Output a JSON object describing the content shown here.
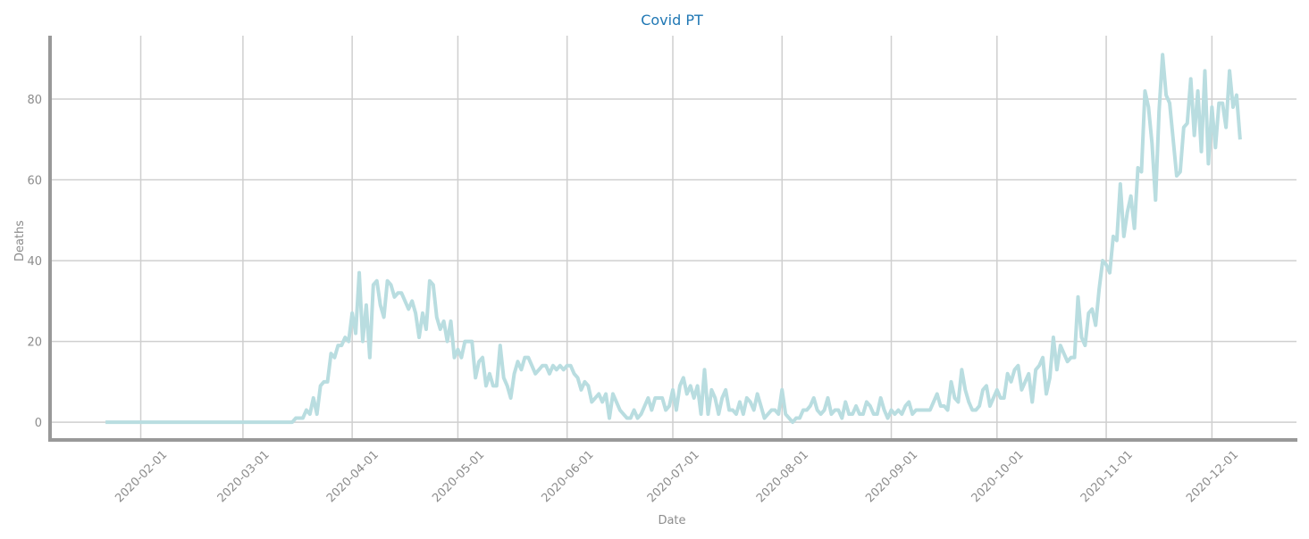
{
  "chart_data": {
    "type": "line",
    "title": "Covid PT",
    "x_label": "Date",
    "y_label": "Deaths",
    "color": "#b9dde0",
    "grid": true,
    "xlim": [
      "2020-01-06",
      "2020-12-25"
    ],
    "ylim": [
      -4.4,
      95.7
    ],
    "xticks": [
      "2020-02-01",
      "2020-03-01",
      "2020-04-01",
      "2020-05-01",
      "2020-06-01",
      "2020-07-01",
      "2020-08-01",
      "2020-09-01",
      "2020-10-01",
      "2020-11-01",
      "2020-12-01"
    ],
    "yticks": [
      0,
      20,
      40,
      60,
      80
    ],
    "x": [
      "2020-01-22",
      "2020-01-23",
      "2020-01-24",
      "2020-01-25",
      "2020-01-26",
      "2020-01-27",
      "2020-01-28",
      "2020-01-29",
      "2020-01-30",
      "2020-01-31",
      "2020-02-01",
      "2020-02-02",
      "2020-02-03",
      "2020-02-04",
      "2020-02-05",
      "2020-02-06",
      "2020-02-07",
      "2020-02-08",
      "2020-02-09",
      "2020-02-10",
      "2020-02-11",
      "2020-02-12",
      "2020-02-13",
      "2020-02-14",
      "2020-02-15",
      "2020-02-16",
      "2020-02-17",
      "2020-02-18",
      "2020-02-19",
      "2020-02-20",
      "2020-02-21",
      "2020-02-22",
      "2020-02-23",
      "2020-02-24",
      "2020-02-25",
      "2020-02-26",
      "2020-02-27",
      "2020-02-28",
      "2020-02-29",
      "2020-03-01",
      "2020-03-02",
      "2020-03-03",
      "2020-03-04",
      "2020-03-05",
      "2020-03-06",
      "2020-03-07",
      "2020-03-08",
      "2020-03-09",
      "2020-03-10",
      "2020-03-11",
      "2020-03-12",
      "2020-03-13",
      "2020-03-14",
      "2020-03-15",
      "2020-03-16",
      "2020-03-17",
      "2020-03-18",
      "2020-03-19",
      "2020-03-20",
      "2020-03-21",
      "2020-03-22",
      "2020-03-23",
      "2020-03-24",
      "2020-03-25",
      "2020-03-26",
      "2020-03-27",
      "2020-03-28",
      "2020-03-29",
      "2020-03-30",
      "2020-03-31",
      "2020-04-01",
      "2020-04-02",
      "2020-04-03",
      "2020-04-04",
      "2020-04-05",
      "2020-04-06",
      "2020-04-07",
      "2020-04-08",
      "2020-04-09",
      "2020-04-10",
      "2020-04-11",
      "2020-04-12",
      "2020-04-13",
      "2020-04-14",
      "2020-04-15",
      "2020-04-16",
      "2020-04-17",
      "2020-04-18",
      "2020-04-19",
      "2020-04-20",
      "2020-04-21",
      "2020-04-22",
      "2020-04-23",
      "2020-04-24",
      "2020-04-25",
      "2020-04-26",
      "2020-04-27",
      "2020-04-28",
      "2020-04-29",
      "2020-04-30",
      "2020-05-01",
      "2020-05-02",
      "2020-05-03",
      "2020-05-04",
      "2020-05-05",
      "2020-05-06",
      "2020-05-07",
      "2020-05-08",
      "2020-05-09",
      "2020-05-10",
      "2020-05-11",
      "2020-05-12",
      "2020-05-13",
      "2020-05-14",
      "2020-05-15",
      "2020-05-16",
      "2020-05-17",
      "2020-05-18",
      "2020-05-19",
      "2020-05-20",
      "2020-05-21",
      "2020-05-22",
      "2020-05-23",
      "2020-05-24",
      "2020-05-25",
      "2020-05-26",
      "2020-05-27",
      "2020-05-28",
      "2020-05-29",
      "2020-05-30",
      "2020-05-31",
      "2020-06-01",
      "2020-06-02",
      "2020-06-03",
      "2020-06-04",
      "2020-06-05",
      "2020-06-06",
      "2020-06-07",
      "2020-06-08",
      "2020-06-09",
      "2020-06-10",
      "2020-06-11",
      "2020-06-12",
      "2020-06-13",
      "2020-06-14",
      "2020-06-15",
      "2020-06-16",
      "2020-06-17",
      "2020-06-18",
      "2020-06-19",
      "2020-06-20",
      "2020-06-21",
      "2020-06-22",
      "2020-06-23",
      "2020-06-24",
      "2020-06-25",
      "2020-06-26",
      "2020-06-27",
      "2020-06-28",
      "2020-06-29",
      "2020-06-30",
      "2020-07-01",
      "2020-07-02",
      "2020-07-03",
      "2020-07-04",
      "2020-07-05",
      "2020-07-06",
      "2020-07-07",
      "2020-07-08",
      "2020-07-09",
      "2020-07-10",
      "2020-07-11",
      "2020-07-12",
      "2020-07-13",
      "2020-07-14",
      "2020-07-15",
      "2020-07-16",
      "2020-07-17",
      "2020-07-18",
      "2020-07-19",
      "2020-07-20",
      "2020-07-21",
      "2020-07-22",
      "2020-07-23",
      "2020-07-24",
      "2020-07-25",
      "2020-07-26",
      "2020-07-27",
      "2020-07-28",
      "2020-07-29",
      "2020-07-30",
      "2020-07-31",
      "2020-08-01",
      "2020-08-02",
      "2020-08-03",
      "2020-08-04",
      "2020-08-05",
      "2020-08-06",
      "2020-08-07",
      "2020-08-08",
      "2020-08-09",
      "2020-08-10",
      "2020-08-11",
      "2020-08-12",
      "2020-08-13",
      "2020-08-14",
      "2020-08-15",
      "2020-08-16",
      "2020-08-17",
      "2020-08-18",
      "2020-08-19",
      "2020-08-20",
      "2020-08-21",
      "2020-08-22",
      "2020-08-23",
      "2020-08-24",
      "2020-08-25",
      "2020-08-26",
      "2020-08-27",
      "2020-08-28",
      "2020-08-29",
      "2020-08-30",
      "2020-08-31",
      "2020-09-01",
      "2020-09-02",
      "2020-09-03",
      "2020-09-04",
      "2020-09-05",
      "2020-09-06",
      "2020-09-07",
      "2020-09-08",
      "2020-09-09",
      "2020-09-10",
      "2020-09-11",
      "2020-09-12",
      "2020-09-13",
      "2020-09-14",
      "2020-09-15",
      "2020-09-16",
      "2020-09-17",
      "2020-09-18",
      "2020-09-19",
      "2020-09-20",
      "2020-09-21",
      "2020-09-22",
      "2020-09-23",
      "2020-09-24",
      "2020-09-25",
      "2020-09-26",
      "2020-09-27",
      "2020-09-28",
      "2020-09-29",
      "2020-09-30",
      "2020-10-01",
      "2020-10-02",
      "2020-10-03",
      "2020-10-04",
      "2020-10-05",
      "2020-10-06",
      "2020-10-07",
      "2020-10-08",
      "2020-10-09",
      "2020-10-10",
      "2020-10-11",
      "2020-10-12",
      "2020-10-13",
      "2020-10-14",
      "2020-10-15",
      "2020-10-16",
      "2020-10-17",
      "2020-10-18",
      "2020-10-19",
      "2020-10-20",
      "2020-10-21",
      "2020-10-22",
      "2020-10-23",
      "2020-10-24",
      "2020-10-25",
      "2020-10-26",
      "2020-10-27",
      "2020-10-28",
      "2020-10-29",
      "2020-10-30",
      "2020-10-31",
      "2020-11-01",
      "2020-11-02",
      "2020-11-03",
      "2020-11-04",
      "2020-11-05",
      "2020-11-06",
      "2020-11-07",
      "2020-11-08",
      "2020-11-09",
      "2020-11-10",
      "2020-11-11",
      "2020-11-12",
      "2020-11-13",
      "2020-11-14",
      "2020-11-15",
      "2020-11-16",
      "2020-11-17",
      "2020-11-18",
      "2020-11-19",
      "2020-11-20",
      "2020-11-21",
      "2020-11-22",
      "2020-11-23",
      "2020-11-24",
      "2020-11-25",
      "2020-11-26",
      "2020-11-27",
      "2020-11-28",
      "2020-11-29",
      "2020-11-30",
      "2020-12-01",
      "2020-12-02",
      "2020-12-03",
      "2020-12-04",
      "2020-12-05",
      "2020-12-06",
      "2020-12-07",
      "2020-12-08",
      "2020-12-09"
    ],
    "values": [
      0,
      0,
      0,
      0,
      0,
      0,
      0,
      0,
      0,
      0,
      0,
      0,
      0,
      0,
      0,
      0,
      0,
      0,
      0,
      0,
      0,
      0,
      0,
      0,
      0,
      0,
      0,
      0,
      0,
      0,
      0,
      0,
      0,
      0,
      0,
      0,
      0,
      0,
      0,
      0,
      0,
      0,
      0,
      0,
      0,
      0,
      0,
      0,
      0,
      0,
      0,
      0,
      0,
      0,
      1,
      1,
      1,
      3,
      2,
      6,
      2,
      9,
      10,
      10,
      17,
      16,
      19,
      19,
      21,
      20,
      27,
      22,
      37,
      20,
      29,
      16,
      34,
      35,
      29,
      26,
      35,
      34,
      31,
      32,
      32,
      30,
      28,
      30,
      27,
      21,
      27,
      23,
      35,
      34,
      26,
      23,
      25,
      20,
      25,
      16,
      18,
      16,
      20,
      20,
      20,
      11,
      15,
      16,
      9,
      12,
      9,
      9,
      19,
      11,
      9,
      6,
      12,
      15,
      13,
      16,
      16,
      14,
      12,
      13,
      14,
      14,
      12,
      14,
      13,
      14,
      13,
      14,
      14,
      12,
      11,
      8,
      10,
      9,
      5,
      6,
      7,
      5,
      7,
      1,
      7,
      5,
      3,
      2,
      1,
      1,
      3,
      1,
      2,
      4,
      6,
      3,
      6,
      6,
      6,
      3,
      4,
      8,
      3,
      9,
      11,
      7,
      9,
      6,
      9,
      2,
      13,
      2,
      8,
      6,
      2,
      6,
      8,
      3,
      3,
      2,
      5,
      2,
      6,
      5,
      3,
      7,
      4,
      1,
      2,
      3,
      3,
      2,
      8,
      2,
      1,
      0,
      1,
      1,
      3,
      3,
      4,
      6,
      3,
      2,
      3,
      6,
      2,
      3,
      3,
      1,
      5,
      2,
      2,
      4,
      2,
      2,
      5,
      4,
      2,
      2,
      6,
      3,
      1,
      3,
      2,
      3,
      2,
      4,
      5,
      2,
      3,
      3,
      3,
      3,
      3,
      5,
      7,
      4,
      4,
      3,
      10,
      6,
      5,
      13,
      8,
      5,
      3,
      3,
      4,
      8,
      9,
      4,
      6,
      8,
      6,
      6,
      12,
      10,
      13,
      14,
      8,
      10,
      12,
      5,
      13,
      14,
      16,
      7,
      11,
      21,
      13,
      19,
      17,
      15,
      16,
      16,
      31,
      21,
      19,
      27,
      28,
      24,
      33,
      40,
      39,
      37,
      46,
      45,
      59,
      46,
      52,
      56,
      48,
      63,
      62,
      82,
      78,
      69,
      55,
      77,
      91,
      81,
      79,
      70,
      61,
      62,
      73,
      74,
      85,
      71,
      82,
      67,
      87,
      64,
      78,
      68,
      79,
      79,
      73,
      87,
      78,
      81,
      70
    ]
  }
}
